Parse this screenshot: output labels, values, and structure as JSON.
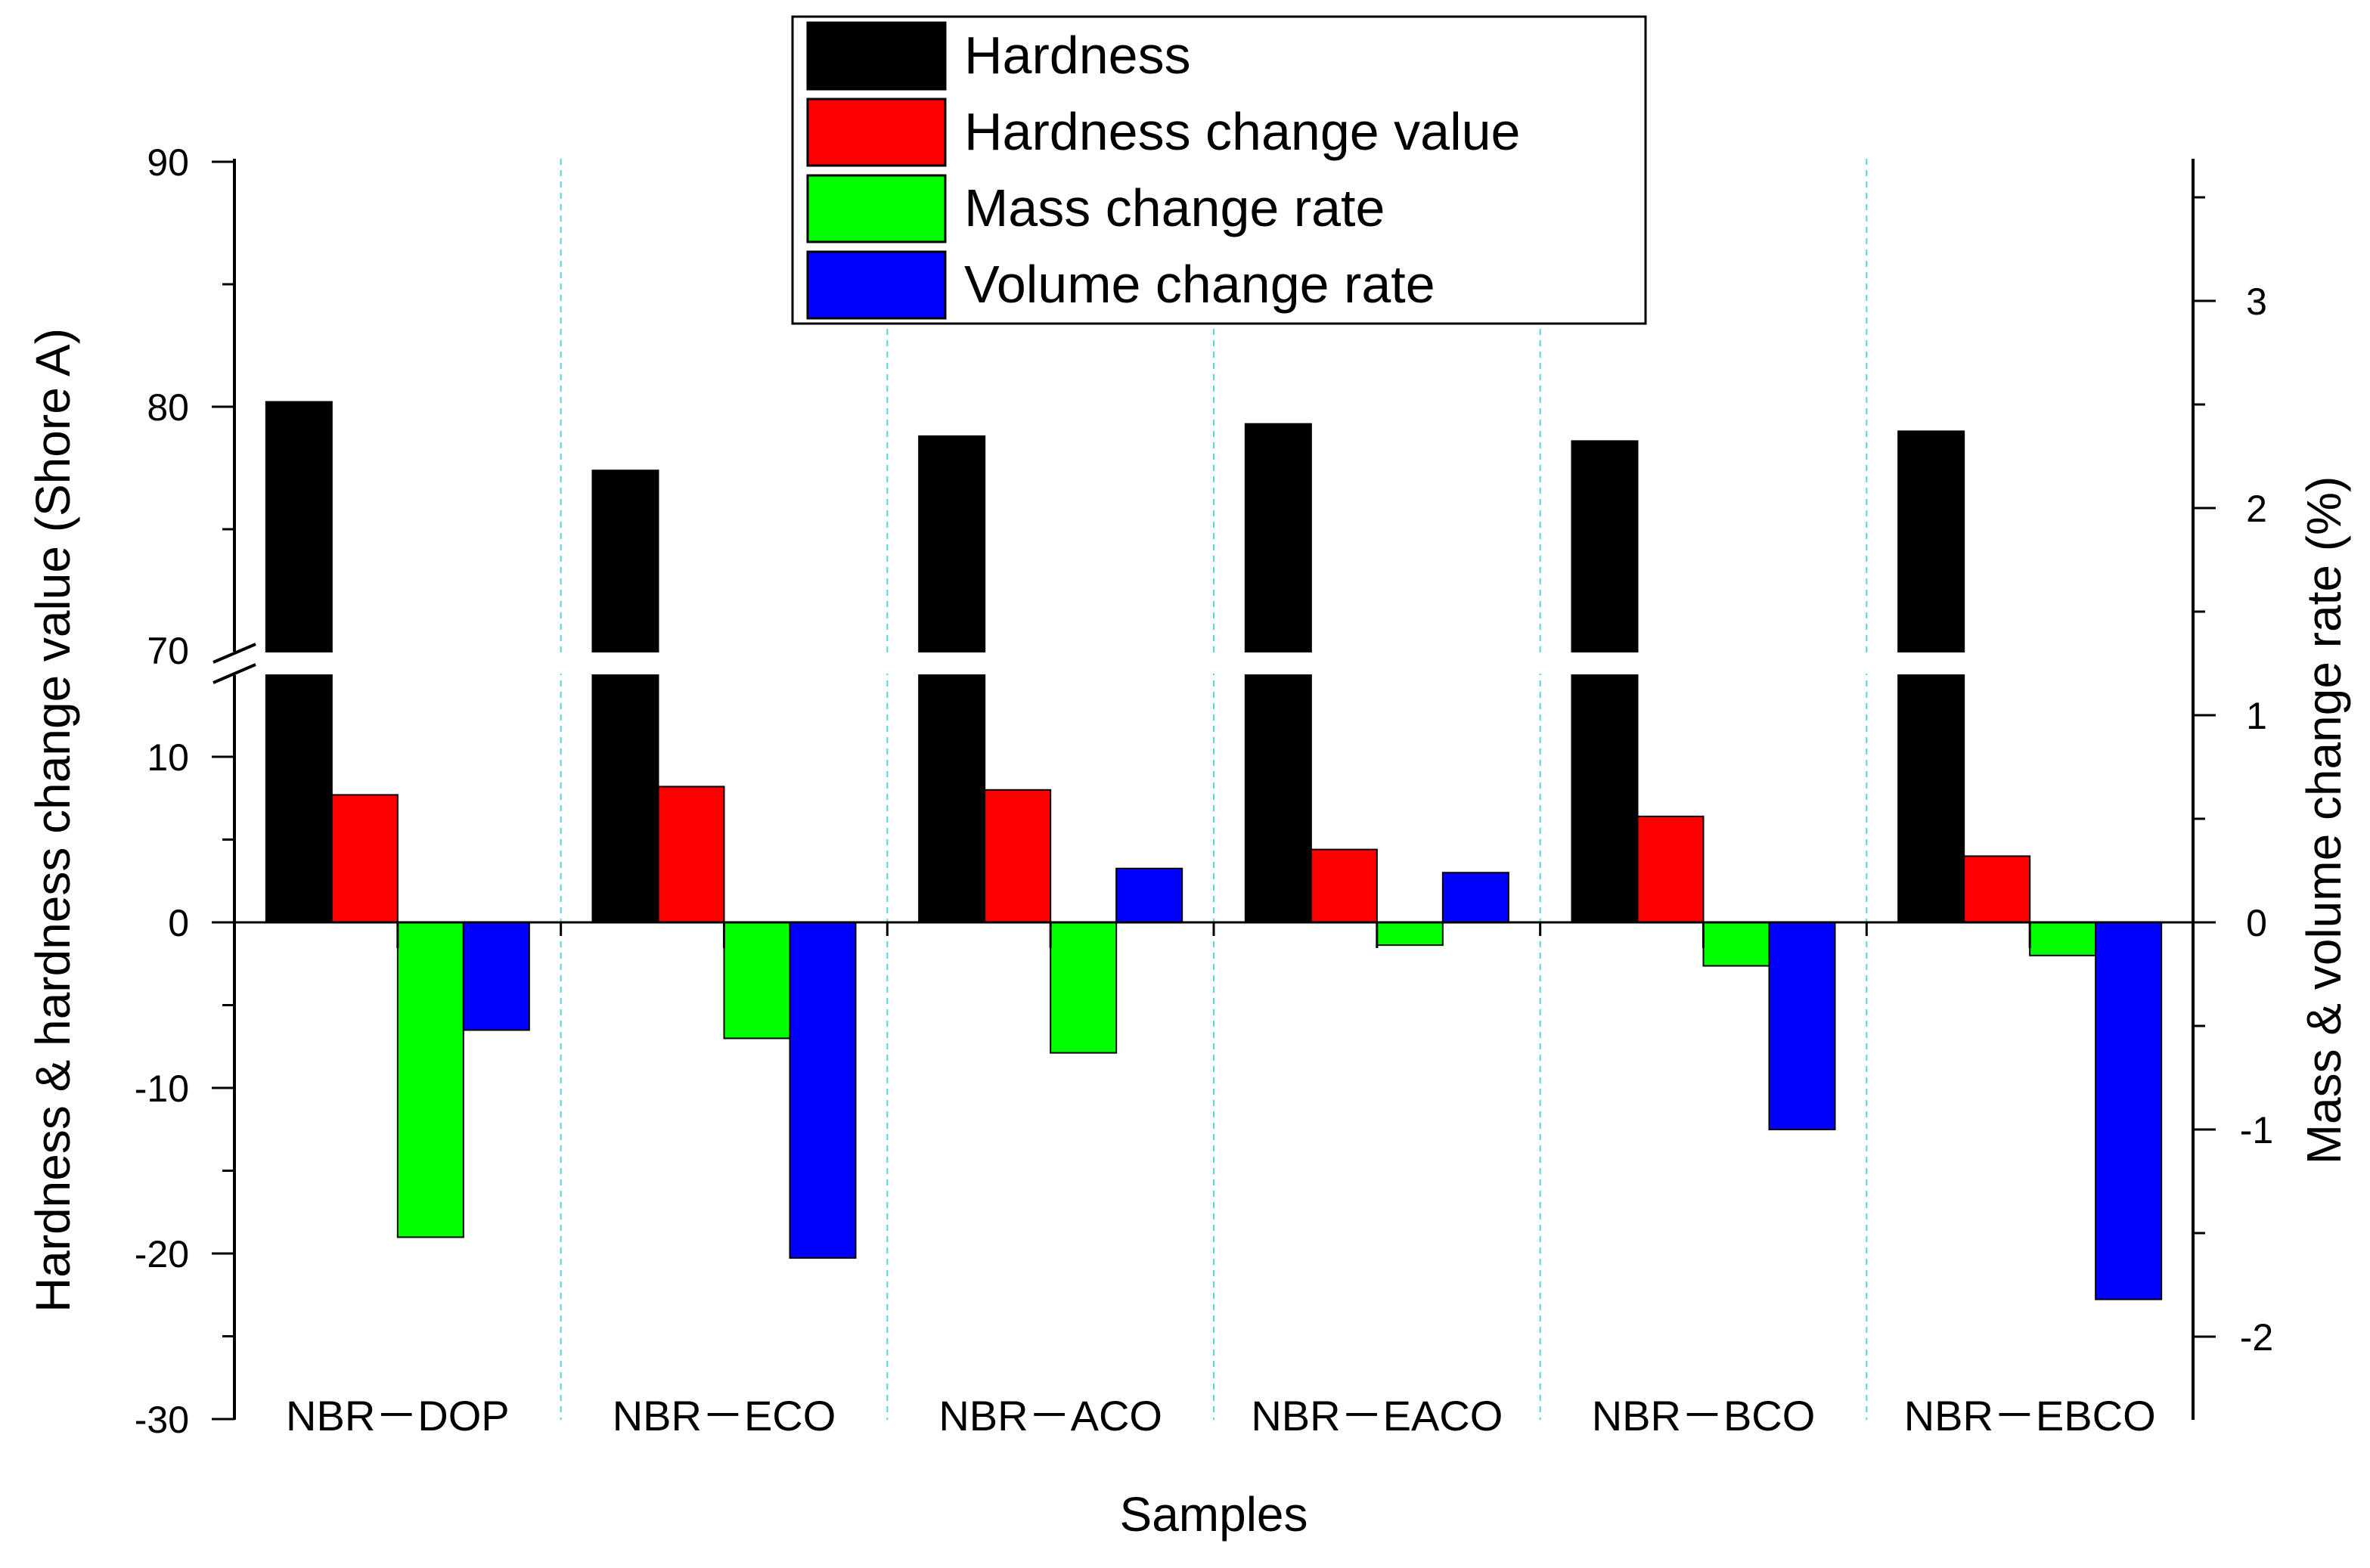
{
  "chart_data": {
    "type": "bar",
    "title": "",
    "xlabel": "Samples",
    "ylabel_left": "Hardness & hardness change value (Shore A)",
    "ylabel_right": "Mass & volume change rate (%)",
    "categories": [
      "NBR－DOP",
      "NBR－ECO",
      "NBR－ACO",
      "NBR－EACO",
      "NBR－BCO",
      "NBR－EBCO"
    ],
    "left_axis": {
      "broken": true,
      "lower_range": [
        -30,
        15
      ],
      "upper_range": [
        70,
        90
      ],
      "ticks_lower": [
        "-30",
        "-20",
        "-10",
        "0",
        "10"
      ],
      "ticks_upper": [
        "70",
        "80",
        "90"
      ]
    },
    "right_axis": {
      "range": [
        -2.3,
        3.7
      ],
      "ticks": [
        "-2",
        "-1",
        "0",
        "1",
        "2",
        "3"
      ]
    },
    "series": [
      {
        "name": "Hardness",
        "axis": "left",
        "color": "#000000",
        "values": [
          80.2,
          77.4,
          78.8,
          79.3,
          78.6,
          79.0
        ]
      },
      {
        "name": "Hardness change value",
        "axis": "left",
        "color": "#ff0000",
        "values": [
          7.7,
          8.2,
          8.0,
          4.4,
          6.4,
          4.0
        ]
      },
      {
        "name": "Mass change rate",
        "axis": "right",
        "color": "#00ff00",
        "values": [
          -1.52,
          -0.56,
          -0.63,
          -0.11,
          -0.21,
          -0.16
        ]
      },
      {
        "name": "Volume change rate",
        "axis": "right",
        "color": "#0000ff",
        "values": [
          -0.52,
          -1.62,
          0.26,
          0.24,
          -1.0,
          -1.82
        ]
      }
    ],
    "legend": {
      "position": "top-center"
    },
    "grid": "vertical dashed separators between categories"
  }
}
